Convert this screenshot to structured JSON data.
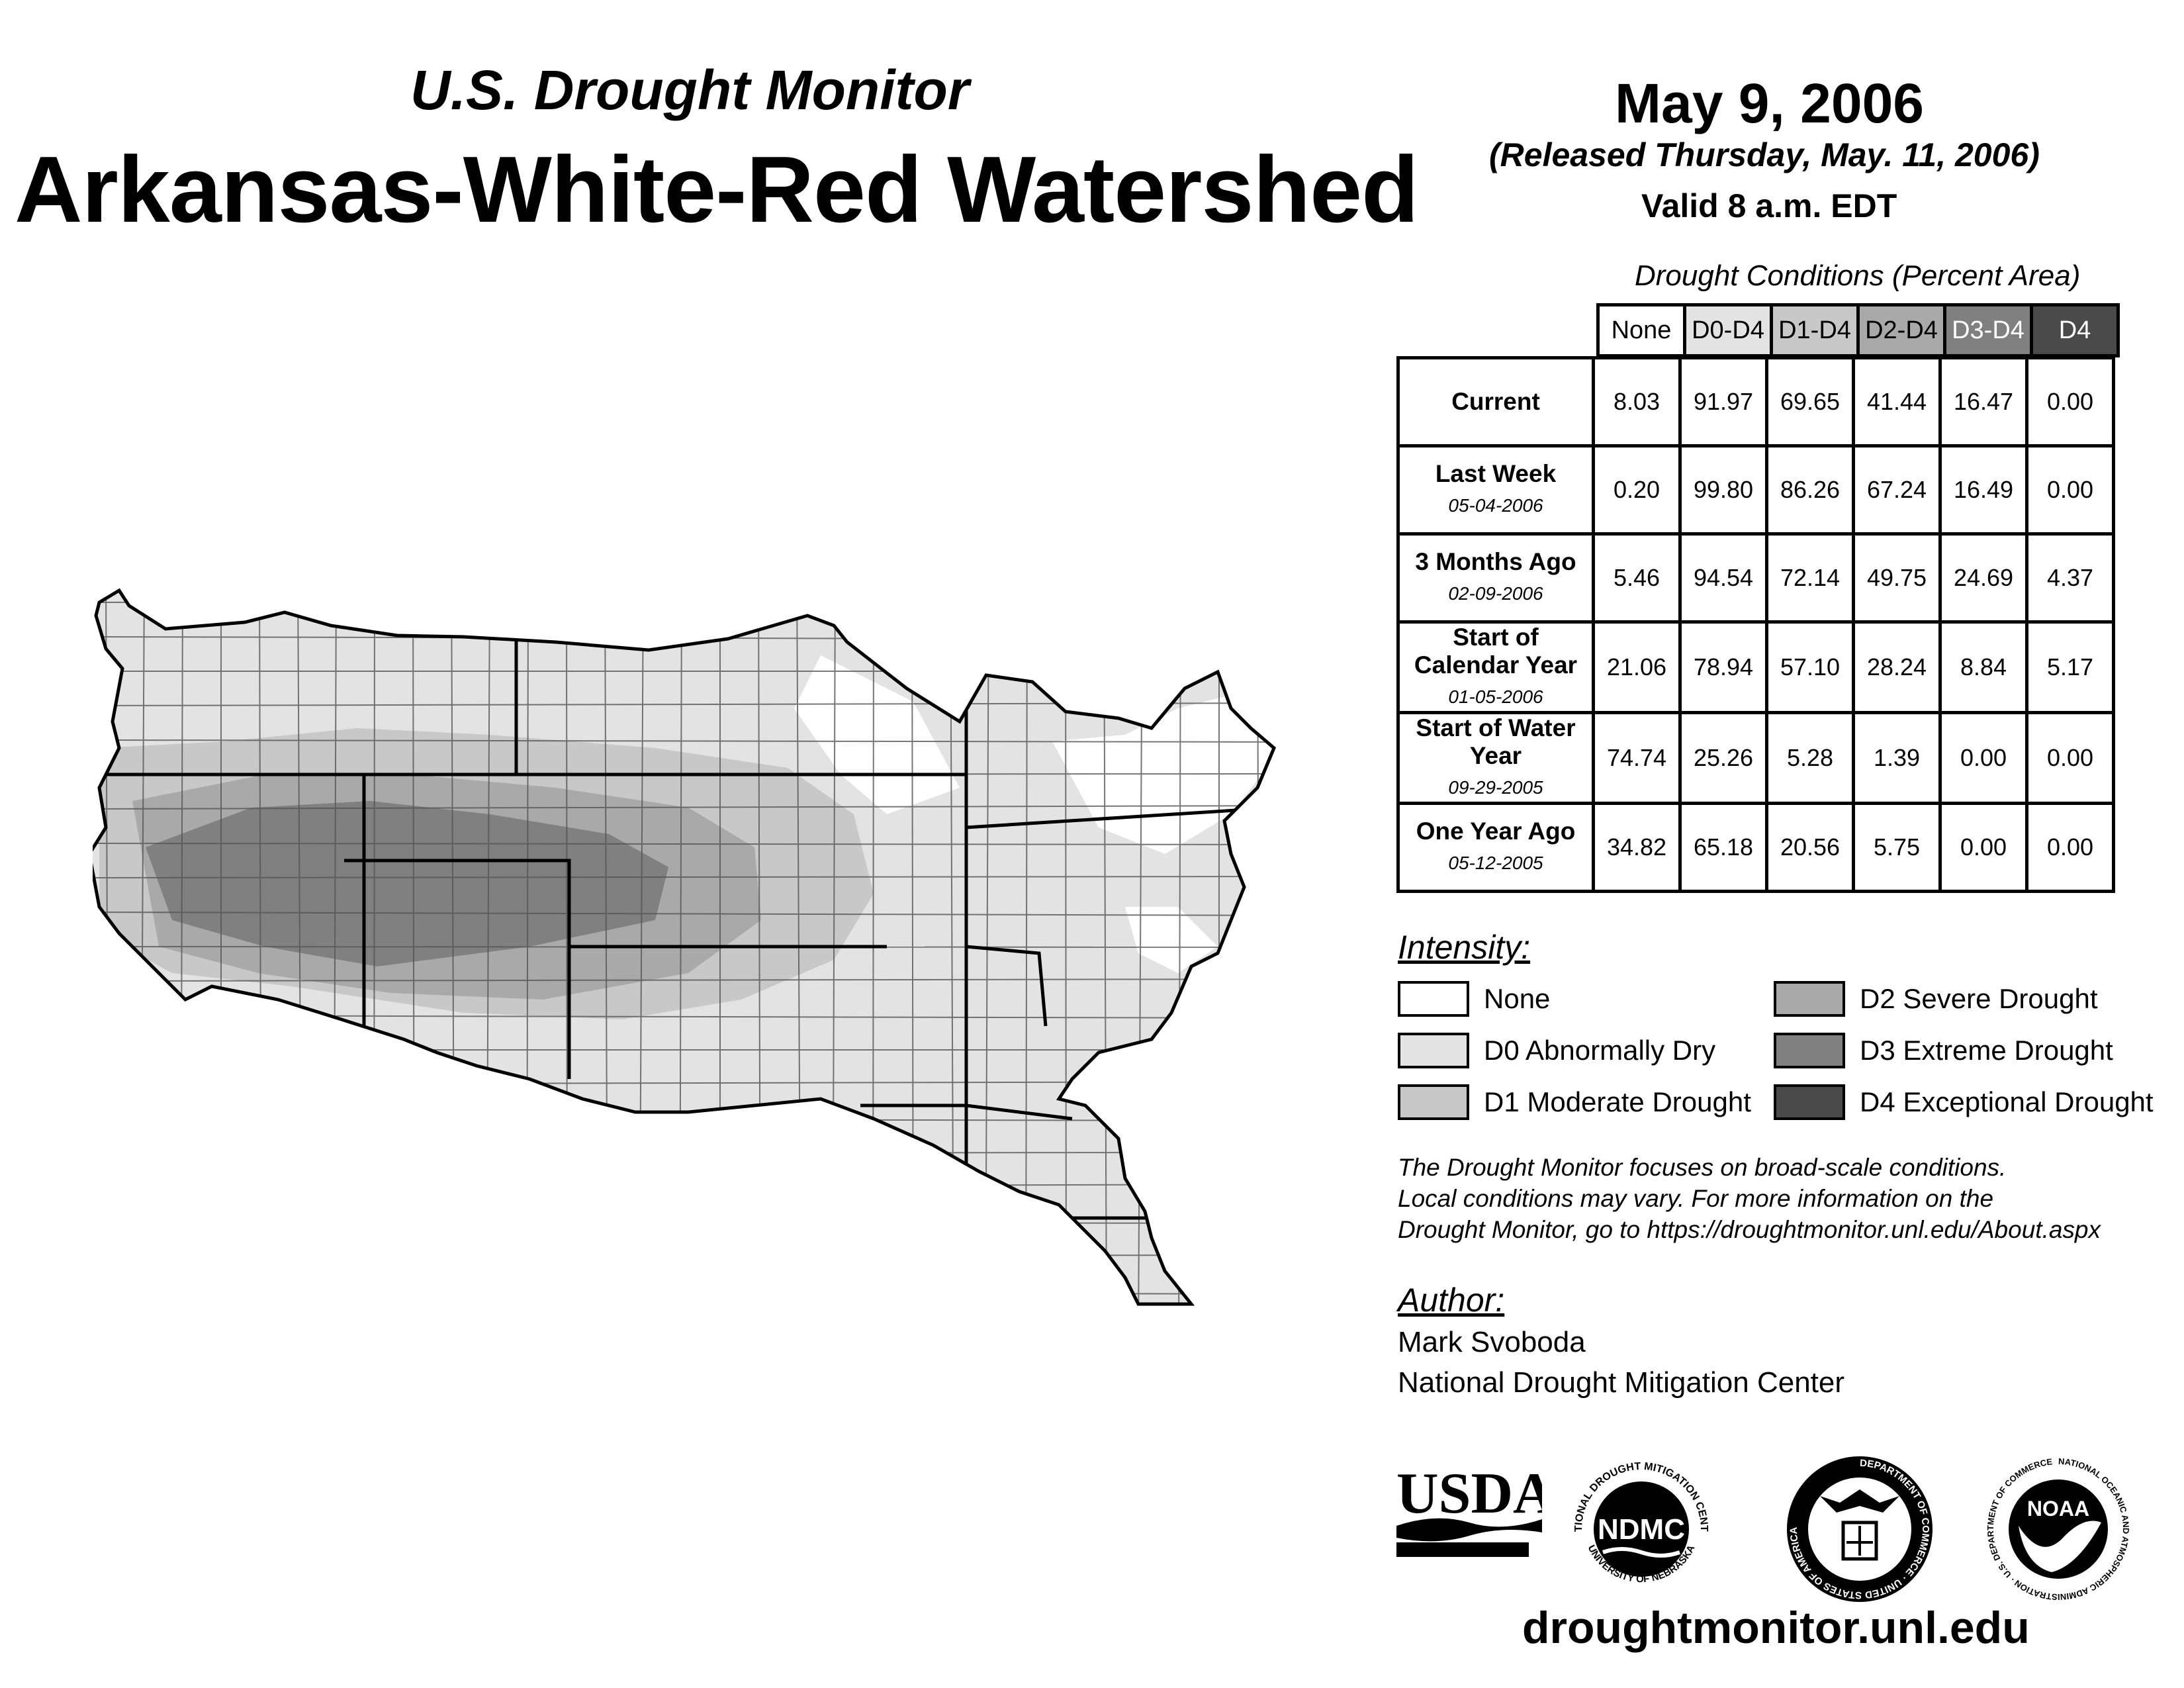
{
  "header": {
    "subtitle": "U.S. Drought Monitor",
    "title": "Arkansas-White-Red Watershed",
    "date": "May 9, 2006",
    "released": "(Released Thursday, May. 11, 2006)",
    "valid": "Valid 8 a.m. EDT"
  },
  "table": {
    "title": "Drought Conditions (Percent Area)",
    "columns": [
      "None",
      "D0-D4",
      "D1-D4",
      "D2-D4",
      "D3-D4",
      "D4"
    ],
    "rows": [
      {
        "label": "Current",
        "date": "",
        "values": [
          "8.03",
          "91.97",
          "69.65",
          "41.44",
          "16.47",
          "0.00"
        ]
      },
      {
        "label": "Last Week",
        "date": "05-04-2006",
        "values": [
          "0.20",
          "99.80",
          "86.26",
          "67.24",
          "16.49",
          "0.00"
        ]
      },
      {
        "label": "3 Months Ago",
        "date": "02-09-2006",
        "values": [
          "5.46",
          "94.54",
          "72.14",
          "49.75",
          "24.69",
          "4.37"
        ]
      },
      {
        "label": "Start of Calendar Year",
        "date": "01-05-2006",
        "values": [
          "21.06",
          "78.94",
          "57.10",
          "28.24",
          "8.84",
          "5.17"
        ]
      },
      {
        "label": "Start of Water Year",
        "date": "09-29-2005",
        "values": [
          "74.74",
          "25.26",
          "5.28",
          "1.39",
          "0.00",
          "0.00"
        ]
      },
      {
        "label": "One Year Ago",
        "date": "05-12-2005",
        "values": [
          "34.82",
          "65.18",
          "20.56",
          "5.75",
          "0.00",
          "0.00"
        ]
      }
    ]
  },
  "legend": {
    "title": "Intensity:",
    "items": [
      {
        "label": "None",
        "color": "#ffffff"
      },
      {
        "label": "D0 Abnormally Dry",
        "color": "#e3e3e3"
      },
      {
        "label": "D1 Moderate Drought",
        "color": "#c8c8c8"
      },
      {
        "label": "D2 Severe Drought",
        "color": "#a9a9a9"
      },
      {
        "label": "D3 Extreme Drought",
        "color": "#808080"
      },
      {
        "label": "D4 Exceptional Drought",
        "color": "#4a4a4a"
      }
    ]
  },
  "header_colors": [
    "#ffffff",
    "#e3e3e3",
    "#c8c8c8",
    "#a9a9a9",
    "#808080",
    "#4a4a4a"
  ],
  "note": {
    "line1": "The Drought Monitor focuses on broad-scale conditions.",
    "line2": "Local conditions may vary. For more information on the",
    "line3": "Drought Monitor, go to https://droughtmonitor.unl.edu/About.aspx"
  },
  "author": {
    "title": "Author:",
    "name": "Mark Svoboda",
    "org": "National Drought Mitigation Center"
  },
  "logos": {
    "usda": "USDA",
    "ndmc": "NDMC",
    "ndmc_ring_top": "NATIONAL DROUGHT MITIGATION CENTER",
    "ndmc_ring_bottom": "UNIVERSITY OF NEBRASKA",
    "doc_ring": "DEPARTMENT OF COMMERCE · UNITED STATES OF AMERICA",
    "noaa": "NOAA",
    "noaa_ring": "NATIONAL OCEANIC AND ATMOSPHERIC ADMINISTRATION · U.S. DEPARTMENT OF COMMERCE"
  },
  "url": "droughtmonitor.unl.edu"
}
